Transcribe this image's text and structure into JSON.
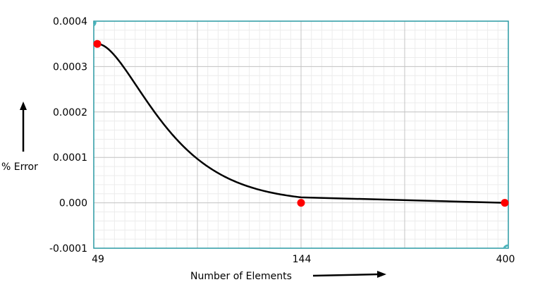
{
  "chart_data": {
    "type": "line",
    "xlabel": "Number of Elements",
    "ylabel": "% Error",
    "x_ticks": [
      "49",
      "144",
      "400"
    ],
    "y_ticks": [
      "0.0004",
      "0.0003",
      "0.0002",
      "0.0001",
      "0.000",
      "-0.0001"
    ],
    "ylim": [
      -0.0001,
      0.0004
    ],
    "grid": true,
    "series": [
      {
        "points": [
          {
            "x": 49,
            "y": 0.00035
          },
          {
            "x": 144,
            "y": 0.0
          },
          {
            "x": 400,
            "y": 0.0
          }
        ],
        "line_color": "#000000",
        "marker_color": "#ff0000"
      }
    ]
  }
}
